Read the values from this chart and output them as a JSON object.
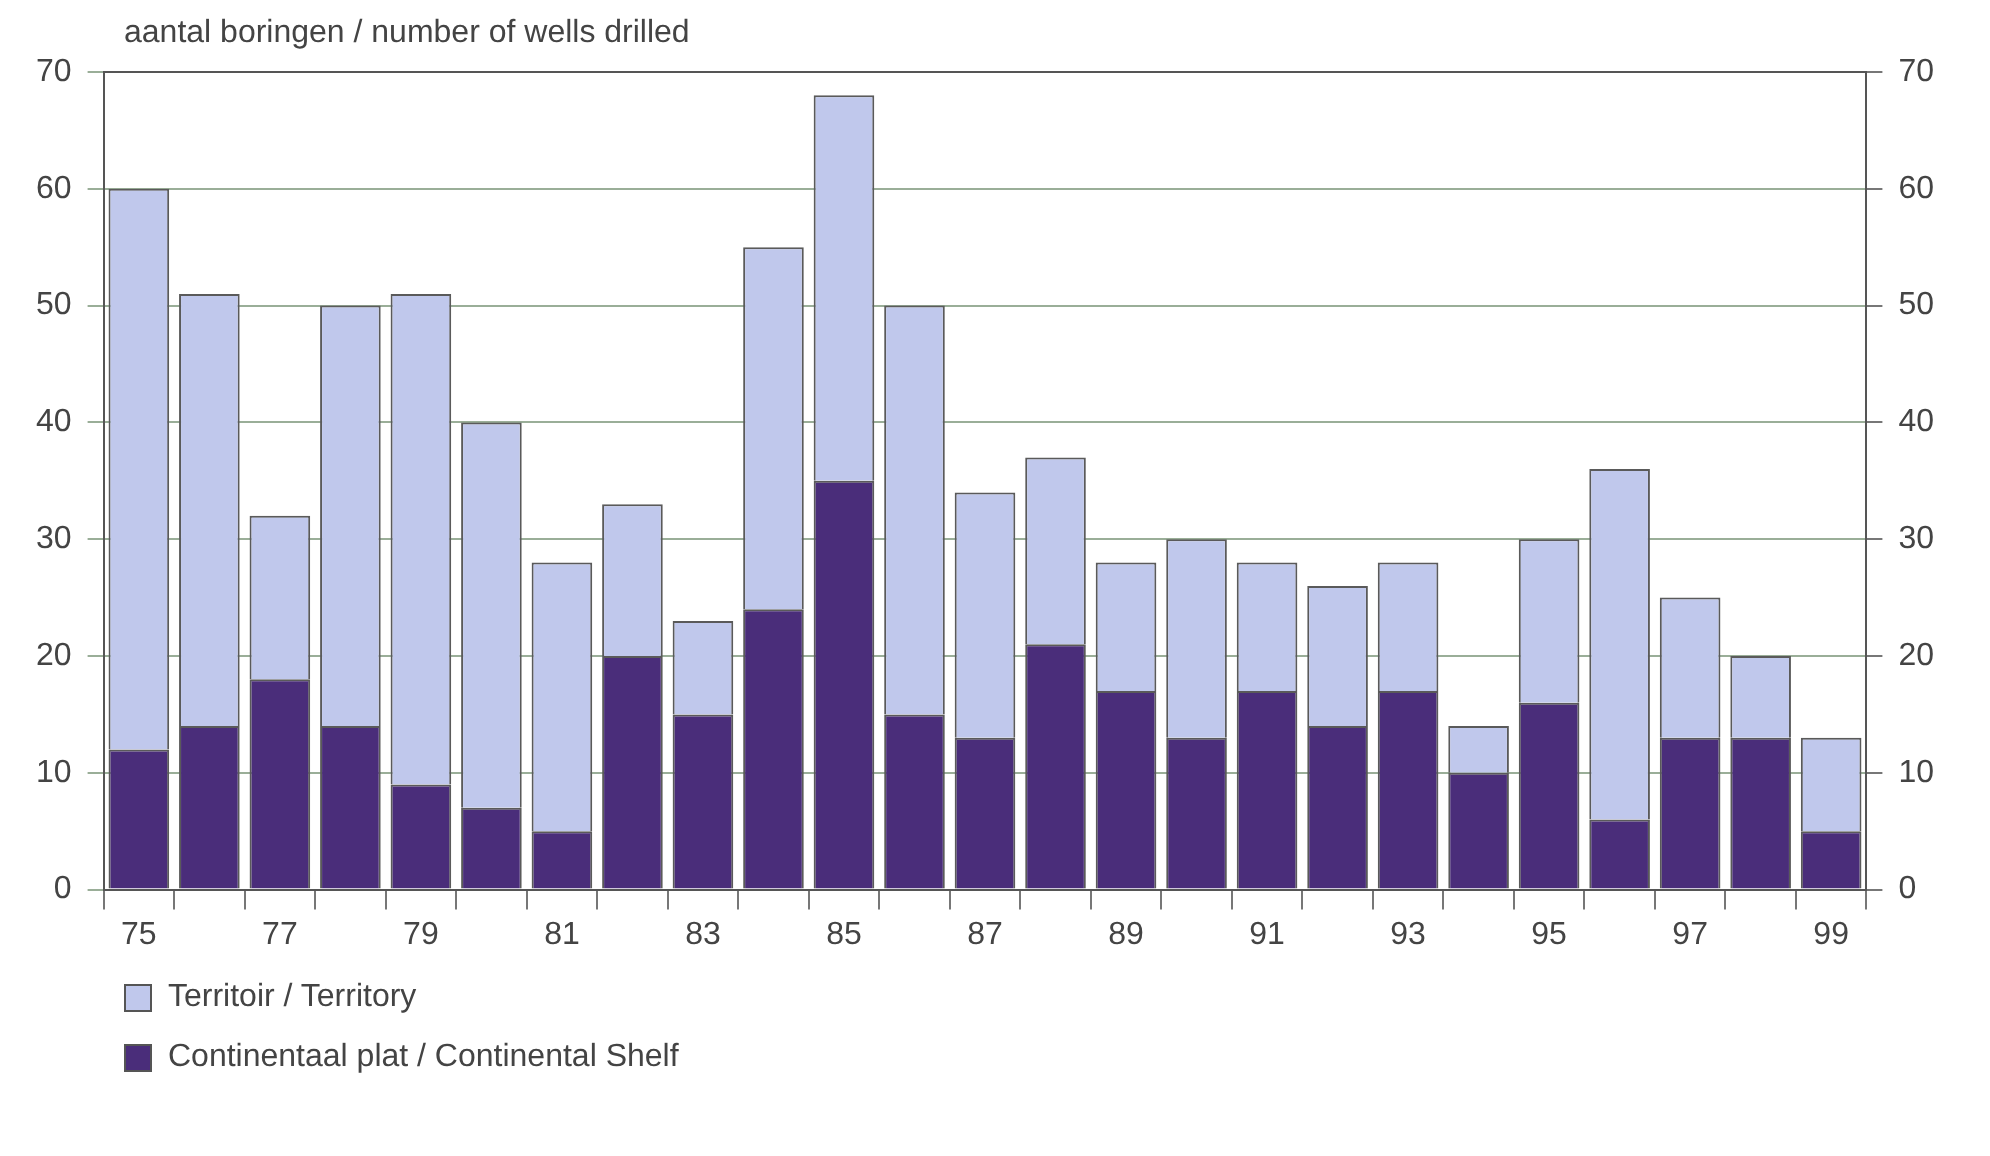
{
  "chart_data": {
    "type": "bar",
    "stacked": true,
    "ylabel": "aantal boringen / number of wells drilled",
    "categories": [
      "75",
      null,
      "77",
      null,
      "79",
      null,
      "81",
      null,
      "83",
      null,
      "85",
      null,
      "87",
      null,
      "89",
      null,
      "91",
      null,
      "93",
      null,
      "95",
      null,
      "97",
      null,
      "99"
    ],
    "series": [
      {
        "name": "Continentaal plat / Continental Shelf",
        "color": "#4a2d7a",
        "values": [
          12,
          14,
          18,
          14,
          9,
          7,
          5,
          20,
          15,
          24,
          35,
          15,
          13,
          21,
          17,
          13,
          17,
          14,
          17,
          10,
          16,
          6,
          13,
          13,
          5
        ]
      },
      {
        "name": "Territoir / Territory",
        "color": "#c0c8ec",
        "values": [
          48,
          37,
          14,
          36,
          42,
          33,
          23,
          13,
          8,
          31,
          33,
          35,
          21,
          16,
          11,
          17,
          11,
          12,
          11,
          4,
          14,
          30,
          12,
          7,
          8
        ]
      }
    ],
    "ylim": [
      0,
      70
    ],
    "yticks": [
      0,
      10,
      20,
      30,
      40,
      50,
      60,
      70
    ],
    "y2lim": [
      0,
      70
    ],
    "y2ticks": [
      0,
      10,
      20,
      30,
      40,
      50,
      60,
      70
    ],
    "grid": "y",
    "legend": "bottom"
  }
}
